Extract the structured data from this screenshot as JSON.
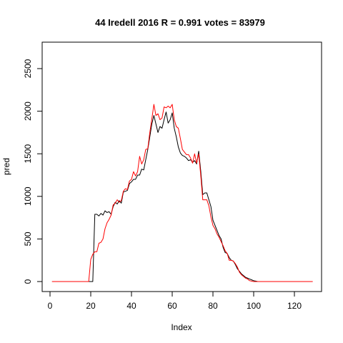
{
  "chart_data": {
    "type": "line",
    "title": "44 Iredell 2016 R = 0.991 votes = 83979",
    "xlabel": "Index",
    "ylabel": "pred",
    "xlim": [
      0,
      130
    ],
    "ylim": [
      0,
      2750
    ],
    "x_ticks": [
      0,
      20,
      40,
      60,
      80,
      100,
      120
    ],
    "y_ticks": [
      0,
      500,
      1000,
      1500,
      2000,
      2500
    ],
    "grid": false,
    "series": [
      {
        "color": "#000000",
        "values": [
          0,
          0,
          0,
          0,
          0,
          0,
          0,
          0,
          0,
          0,
          0,
          0,
          0,
          0,
          0,
          0,
          0,
          0,
          0,
          0,
          0,
          790,
          790,
          770,
          800,
          780,
          830,
          810,
          820,
          790,
          880,
          930,
          910,
          950,
          920,
          1050,
          1060,
          1070,
          1150,
          1170,
          1200,
          1200,
          1250,
          1250,
          1320,
          1310,
          1430,
          1550,
          1700,
          1850,
          1950,
          1850,
          1750,
          1820,
          1800,
          1900,
          1990,
          1860,
          1900,
          1980,
          1800,
          1700,
          1580,
          1510,
          1480,
          1470,
          1450,
          1420,
          1430,
          1400,
          1420,
          1380,
          1530,
          1300,
          1020,
          1040,
          1040,
          960,
          880,
          720,
          660,
          600,
          540,
          500,
          400,
          340,
          330,
          280,
          250,
          240,
          200,
          150,
          120,
          90,
          70,
          50,
          40,
          30,
          20,
          10,
          5,
          0,
          0,
          0,
          0,
          0,
          0,
          0,
          0,
          0,
          0,
          0,
          0,
          0,
          0,
          0,
          0,
          0,
          0,
          0,
          0,
          0,
          0,
          0,
          0,
          0,
          0
        ]
      },
      {
        "color": "#ff0000",
        "values": [
          0,
          0,
          0,
          0,
          0,
          0,
          0,
          0,
          0,
          0,
          0,
          0,
          0,
          0,
          0,
          0,
          0,
          0,
          0,
          260,
          320,
          350,
          350,
          450,
          460,
          500,
          620,
          690,
          730,
          780,
          900,
          920,
          960,
          930,
          950,
          1060,
          1090,
          1080,
          1180,
          1200,
          1290,
          1240,
          1290,
          1470,
          1380,
          1430,
          1550,
          1560,
          1750,
          1910,
          2080,
          1950,
          1970,
          1900,
          1920,
          2050,
          2040,
          2060,
          2040,
          2080,
          1900,
          1820,
          1800,
          1680,
          1550,
          1520,
          1490,
          1490,
          1450,
          1390,
          1500,
          1390,
          1500,
          1250,
          960,
          960,
          960,
          890,
          760,
          660,
          620,
          560,
          520,
          470,
          420,
          360,
          330,
          250,
          250,
          240,
          210,
          170,
          110,
          80,
          60,
          40,
          30,
          10,
          5,
          0,
          0,
          0,
          0,
          0,
          0,
          0,
          0,
          0,
          0,
          0,
          0,
          0,
          0,
          0,
          0,
          0,
          0,
          0,
          0,
          0,
          0,
          0,
          0,
          0,
          0,
          0,
          0,
          0,
          0
        ]
      }
    ]
  }
}
